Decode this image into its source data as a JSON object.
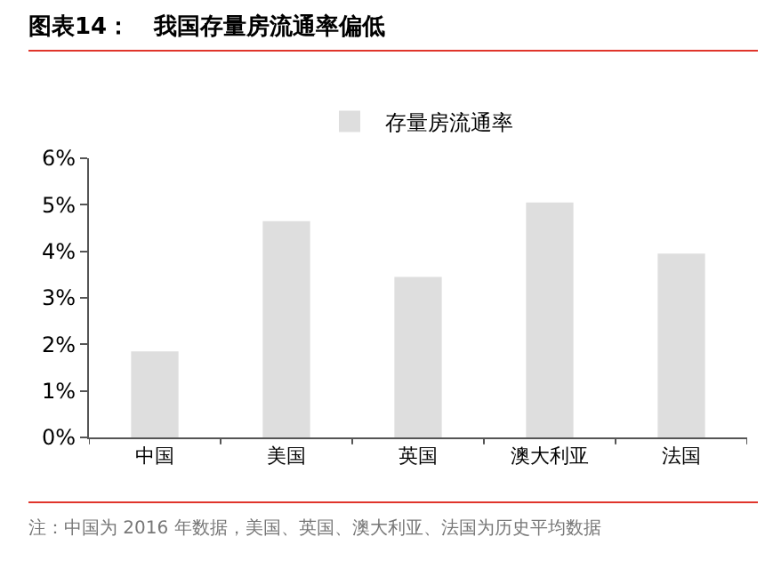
{
  "chart_data": {
    "type": "bar",
    "title": "图表14：   我国存量房流通率偏低",
    "categories": [
      "中国",
      "美国",
      "英国",
      "澳大利亚",
      "法国"
    ],
    "series": [
      {
        "name": "存量房流通率",
        "color": "#dedede",
        "values": [
          1.85,
          4.65,
          3.45,
          5.05,
          3.95
        ]
      }
    ],
    "ylim": [
      0,
      6
    ],
    "yticks": [
      {
        "value": 0,
        "label": "0%"
      },
      {
        "value": 1,
        "label": "1%"
      },
      {
        "value": 2,
        "label": "2%"
      },
      {
        "value": 3,
        "label": "3%"
      },
      {
        "value": 4,
        "label": "4%"
      },
      {
        "value": 5,
        "label": "5%"
      },
      {
        "value": 6,
        "label": "6%"
      }
    ],
    "grid": false,
    "legend": "top",
    "annotations": [
      "注：中国为 2016 年数据，美国、英国、澳大利亚、法国为历史平均数据"
    ]
  }
}
